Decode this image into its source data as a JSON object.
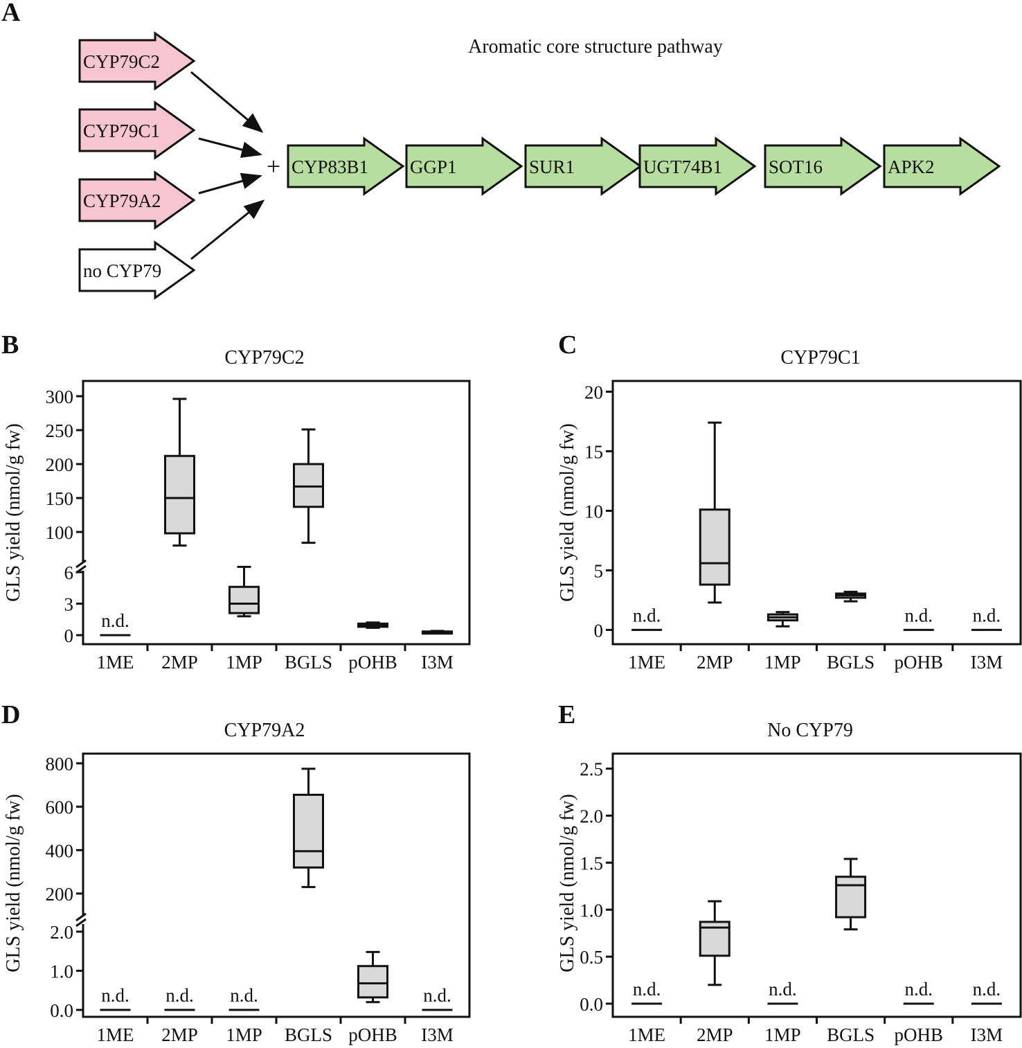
{
  "panel_a": {
    "letter": "A",
    "title": "Aromatic core structure pathway",
    "plus": "+",
    "cyp79_genes": [
      {
        "label": "CYP79C2",
        "color": "#f7c5cf"
      },
      {
        "label": "CYP79C1",
        "color": "#f7c5cf"
      },
      {
        "label": "CYP79A2",
        "color": "#f7c5cf"
      },
      {
        "label": "no CYP79",
        "color": "#ffffff"
      }
    ],
    "core_genes": [
      {
        "label": "CYP83B1",
        "color": "#b8dda0"
      },
      {
        "label": "GGP1",
        "color": "#b8dda0"
      },
      {
        "label": "SUR1",
        "color": "#b8dda0"
      },
      {
        "label": "UGT74B1",
        "color": "#b8dda0"
      },
      {
        "label": "SOT16",
        "color": "#b8dda0"
      },
      {
        "label": "APK2",
        "color": "#b8dda0"
      }
    ]
  },
  "colors": {
    "box_fill": "#d9d9d9",
    "stroke": "#111111"
  },
  "chart_data": [
    {
      "letter": "B",
      "type": "box",
      "title": "CYP79C2",
      "ylabel": "GLS yield (nmol/g fw)",
      "categories": [
        "1ME",
        "2MP",
        "1MP",
        "BGLS",
        "pOHB",
        "I3M"
      ],
      "axis_break": true,
      "lower_ticks": [
        "0",
        "3",
        "6"
      ],
      "upper_ticks": [
        "100",
        "150",
        "200",
        "250",
        "300"
      ],
      "lower_range": [
        0,
        6
      ],
      "upper_range": [
        100,
        300
      ],
      "series": [
        {
          "category": "1ME",
          "nd": true,
          "label": "n.d."
        },
        {
          "category": "2MP",
          "min": 80,
          "q1": 98,
          "median": 150,
          "q3": 212,
          "max": 296
        },
        {
          "category": "1MP",
          "min": 1.8,
          "q1": 2.1,
          "median": 3.0,
          "q3": 4.6,
          "max": 6.5
        },
        {
          "category": "BGLS",
          "min": 84,
          "q1": 137,
          "median": 167,
          "q3": 200,
          "max": 251
        },
        {
          "category": "pOHB",
          "min": 0.7,
          "q1": 0.8,
          "median": 0.95,
          "q3": 1.1,
          "max": 1.2
        },
        {
          "category": "I3M",
          "min": 0.2,
          "q1": 0.25,
          "median": 0.3,
          "q3": 0.35,
          "max": 0.4
        }
      ]
    },
    {
      "letter": "C",
      "type": "box",
      "title": "CYP79C1",
      "ylabel": "GLS yield (nmol/g fw)",
      "categories": [
        "1ME",
        "2MP",
        "1MP",
        "BGLS",
        "pOHB",
        "I3M"
      ],
      "axis_break": false,
      "ticks": [
        "0",
        "5",
        "10",
        "15",
        "20"
      ],
      "ylim": [
        -1.2,
        20.9
      ],
      "series": [
        {
          "category": "1ME",
          "nd": true,
          "label": "n.d."
        },
        {
          "category": "2MP",
          "min": 2.3,
          "q1": 3.8,
          "median": 5.6,
          "q3": 10.1,
          "max": 17.4
        },
        {
          "category": "1MP",
          "min": 0.3,
          "q1": 0.8,
          "median": 1.05,
          "q3": 1.3,
          "max": 1.5
        },
        {
          "category": "BGLS",
          "min": 2.4,
          "q1": 2.7,
          "median": 2.9,
          "q3": 3.05,
          "max": 3.2
        },
        {
          "category": "pOHB",
          "nd": true,
          "label": "n.d."
        },
        {
          "category": "I3M",
          "nd": true,
          "label": "n.d."
        }
      ]
    },
    {
      "letter": "D",
      "type": "box",
      "title": "CYP79A2",
      "ylabel": "GLS yield (nmol/g fw)",
      "categories": [
        "1ME",
        "2MP",
        "1MP",
        "BGLS",
        "pOHB",
        "I3M"
      ],
      "axis_break": true,
      "lower_ticks": [
        "0.0",
        "1.0",
        "2.0"
      ],
      "upper_ticks": [
        "200",
        "400",
        "600",
        "800"
      ],
      "lower_range": [
        0,
        2
      ],
      "upper_range": [
        200,
        800
      ],
      "series": [
        {
          "category": "1ME",
          "nd": true,
          "label": "n.d."
        },
        {
          "category": "2MP",
          "nd": true,
          "label": "n.d."
        },
        {
          "category": "1MP",
          "nd": true,
          "label": "n.d."
        },
        {
          "category": "BGLS",
          "min": 230,
          "q1": 320,
          "median": 395,
          "q3": 655,
          "max": 775
        },
        {
          "category": "pOHB",
          "min": 0.2,
          "q1": 0.32,
          "median": 0.68,
          "q3": 1.12,
          "max": 1.48
        },
        {
          "category": "I3M",
          "nd": true,
          "label": "n.d."
        }
      ]
    },
    {
      "letter": "E",
      "type": "box",
      "title": "No CYP79",
      "ylabel": "GLS yield (nmol/g fw)",
      "categories": [
        "1ME",
        "2MP",
        "1MP",
        "BGLS",
        "pOHB",
        "I3M"
      ],
      "axis_break": false,
      "ticks": [
        "0.0",
        "0.5",
        "1.0",
        "1.5",
        "2.0",
        "2.5"
      ],
      "ylim": [
        -0.14,
        2.66
      ],
      "series": [
        {
          "category": "1ME",
          "nd": true,
          "label": "n.d."
        },
        {
          "category": "2MP",
          "min": 0.2,
          "q1": 0.51,
          "median": 0.81,
          "q3": 0.87,
          "max": 1.09
        },
        {
          "category": "1MP",
          "nd": true,
          "label": "n.d."
        },
        {
          "category": "BGLS",
          "min": 0.79,
          "q1": 0.92,
          "median": 1.26,
          "q3": 1.35,
          "max": 1.54
        },
        {
          "category": "pOHB",
          "nd": true,
          "label": "n.d."
        },
        {
          "category": "I3M",
          "nd": true,
          "label": "n.d."
        }
      ]
    }
  ]
}
